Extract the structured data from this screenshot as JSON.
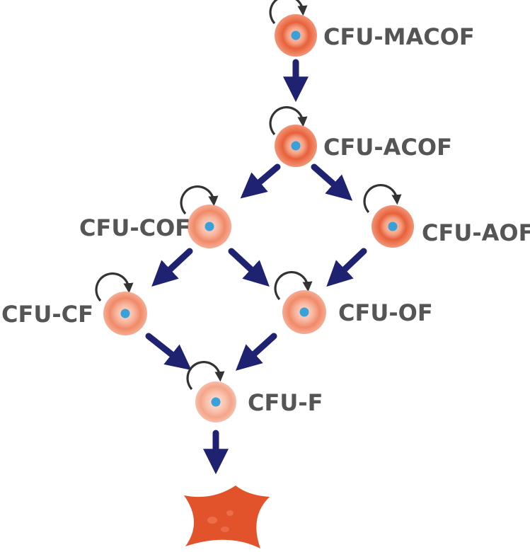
{
  "nodes": [
    {
      "id": "cfu-macof",
      "label": "CFU-MACOF",
      "tone": "dark"
    },
    {
      "id": "cfu-acof",
      "label": "CFU-ACOF",
      "tone": "dark"
    },
    {
      "id": "cfu-cof",
      "label": "CFU-COF",
      "tone": "light"
    },
    {
      "id": "cfu-aof",
      "label": "CFU-AOF",
      "tone": "dark"
    },
    {
      "id": "cfu-cf",
      "label": "CFU-CF",
      "tone": "light"
    },
    {
      "id": "cfu-of",
      "label": "CFU-OF",
      "tone": "light"
    },
    {
      "id": "cfu-f",
      "label": "CFU-F",
      "tone": "lighter"
    }
  ],
  "edges": [
    [
      "cfu-macof",
      "cfu-acof"
    ],
    [
      "cfu-acof",
      "cfu-cof"
    ],
    [
      "cfu-acof",
      "cfu-aof"
    ],
    [
      "cfu-cof",
      "cfu-cf"
    ],
    [
      "cfu-cof",
      "cfu-of"
    ],
    [
      "cfu-aof",
      "cfu-of"
    ],
    [
      "cfu-cf",
      "cfu-f"
    ],
    [
      "cfu-of",
      "cfu-f"
    ],
    [
      "cfu-f",
      "terminal-cell"
    ]
  ],
  "colors": {
    "arrow": "#1f2270",
    "loop": "#333333",
    "label": "#555555",
    "nucleus": "#3aa0d8",
    "cell_dark": "#e8603a",
    "cell_light": "#f08a68",
    "cell_lighter": "#f4a58a",
    "terminal_cell": "#e2532c"
  }
}
